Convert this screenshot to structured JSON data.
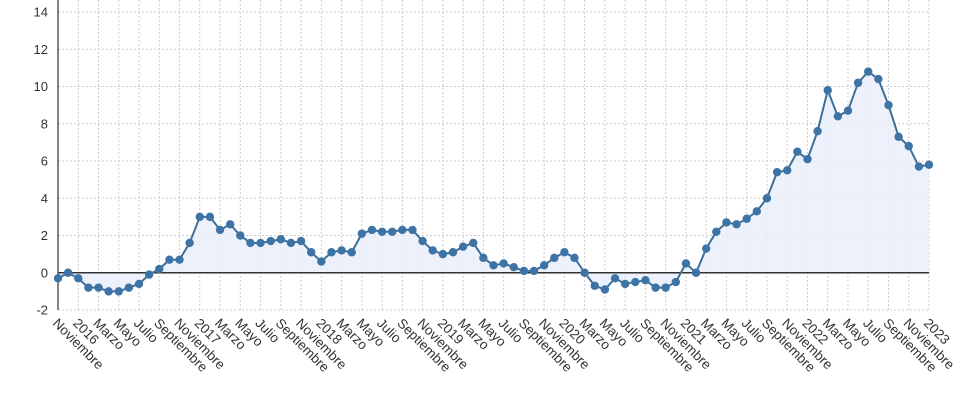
{
  "chart_data": {
    "type": "line",
    "title": "",
    "xlabel": "",
    "ylabel": "",
    "ylim": [
      -2,
      14
    ],
    "yticks": [
      -2,
      0,
      2,
      4,
      6,
      8,
      10,
      12,
      14
    ],
    "grid": true,
    "fill_area": true,
    "colors": {
      "line": "#3d6f99",
      "marker": "#3d74a5",
      "fill": "#e9eefb",
      "grid": "#cccccc",
      "zero_line": "#333333",
      "axis": "#333333"
    },
    "x_tick_labels": [
      "Noviembre",
      "2016",
      "Marzo",
      "Mayo",
      "Julio",
      "Septiembre",
      "Noviembre",
      "2017",
      "Marzo",
      "Mayo",
      "Julio",
      "Septiembre",
      "Noviembre",
      "2018",
      "Marzo",
      "Mayo",
      "Julio",
      "Septiembre",
      "Noviembre",
      "2019",
      "Marzo",
      "Mayo",
      "Julio",
      "Septiembre",
      "Noviembre",
      "2020",
      "Marzo",
      "Mayo",
      "Julio",
      "Septiembre",
      "Noviembre",
      "2021",
      "Marzo",
      "Mayo",
      "Julio",
      "Septiembre",
      "Noviembre",
      "2022",
      "Marzo",
      "Mayo",
      "Julio",
      "Septiembre",
      "Noviembre",
      "2023"
    ],
    "series": [
      {
        "values": [
          -0.3,
          0.0,
          -0.3,
          -0.8,
          -0.8,
          -1.0,
          -1.0,
          -0.8,
          -0.6,
          -0.1,
          0.2,
          0.7,
          0.7,
          1.6,
          3.0,
          3.0,
          2.3,
          2.6,
          2.0,
          1.6,
          1.6,
          1.7,
          1.8,
          1.6,
          1.7,
          1.1,
          0.6,
          1.1,
          1.2,
          1.1,
          2.1,
          2.3,
          2.2,
          2.2,
          2.3,
          2.3,
          1.7,
          1.2,
          1.0,
          1.1,
          1.4,
          1.6,
          0.8,
          0.4,
          0.5,
          0.3,
          0.1,
          0.1,
          0.4,
          0.8,
          1.1,
          0.8,
          0.0,
          -0.7,
          -0.9,
          -0.3,
          -0.6,
          -0.5,
          -0.4,
          -0.8,
          -0.8,
          -0.5,
          0.5,
          0.0,
          1.3,
          2.2,
          2.7,
          2.6,
          2.9,
          3.3,
          4.0,
          5.4,
          5.5,
          6.5,
          6.1,
          7.6,
          9.8,
          8.4,
          8.7,
          10.2,
          10.8,
          10.4,
          9.0,
          7.3,
          6.8,
          5.7,
          5.8
        ]
      }
    ]
  }
}
